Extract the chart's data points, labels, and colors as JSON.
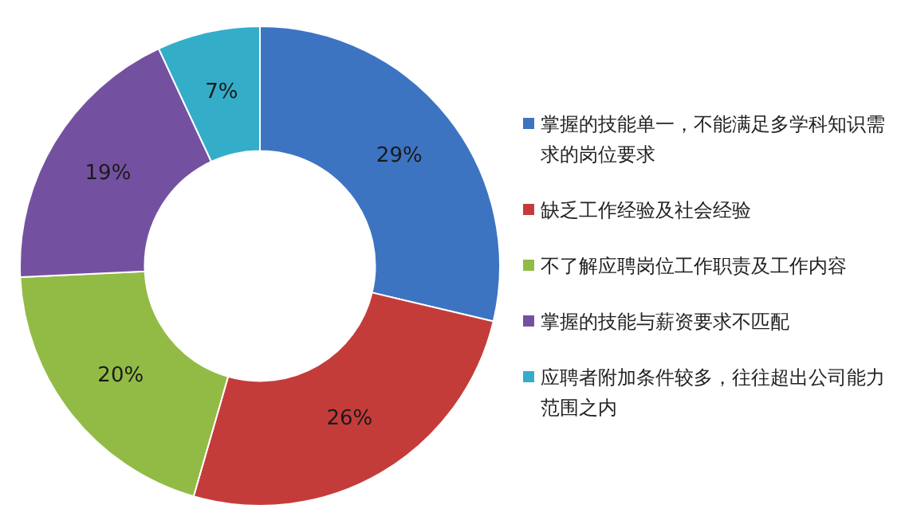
{
  "chart_data": {
    "type": "donut",
    "categories": [
      "掌握的技能单一，不能满足多学科知识需求的岗位要求",
      "缺乏工作经验及社会经验",
      "不了解应聘岗位工作职责及工作内容",
      "掌握的技能与薪资要求不匹配",
      "应聘者附加条件较多，往往超出公司能力范围之内"
    ],
    "values": [
      29,
      26,
      20,
      19,
      7
    ],
    "colors": [
      "#3d74c2",
      "#c43c3a",
      "#92bb45",
      "#7451a0",
      "#34adc9"
    ],
    "value_labels": [
      "29%",
      "26%",
      "20%",
      "19%",
      "7%"
    ],
    "legend": "right"
  }
}
